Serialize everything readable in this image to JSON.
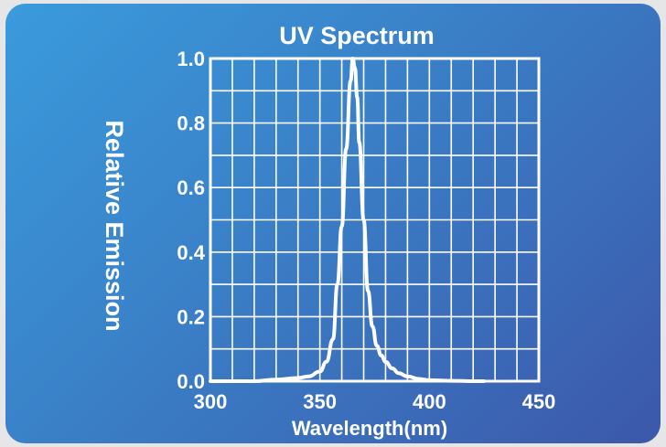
{
  "chart_data": {
    "type": "line",
    "title": "UV Spectrum",
    "xlabel": "Wavelength(nm)",
    "ylabel": "Relative Emission",
    "xlim": [
      300,
      450
    ],
    "ylim": [
      0.0,
      1.0
    ],
    "x_ticks": [
      "300",
      "350",
      "400",
      "450"
    ],
    "y_ticks": [
      "0.0",
      "0.2",
      "0.4",
      "0.6",
      "0.8",
      "1.0"
    ],
    "grid": true,
    "series": [
      {
        "x": [
          300,
          310,
          320,
          330,
          340,
          345,
          350,
          353,
          356,
          358,
          360,
          362,
          364,
          365,
          366,
          367,
          368,
          370,
          372,
          374,
          376,
          378,
          380,
          383,
          386,
          390,
          395,
          400,
          410,
          420,
          425
        ],
        "y": [
          0.0,
          0.0,
          0.0,
          0.005,
          0.01,
          0.015,
          0.03,
          0.06,
          0.13,
          0.3,
          0.48,
          0.72,
          0.93,
          1.0,
          0.97,
          0.88,
          0.74,
          0.5,
          0.28,
          0.17,
          0.11,
          0.08,
          0.06,
          0.04,
          0.025,
          0.015,
          0.007,
          0.003,
          0.001,
          0.0,
          0.0
        ]
      }
    ],
    "colors": {
      "line": "#ffffff",
      "grid": "#ffffff"
    }
  }
}
